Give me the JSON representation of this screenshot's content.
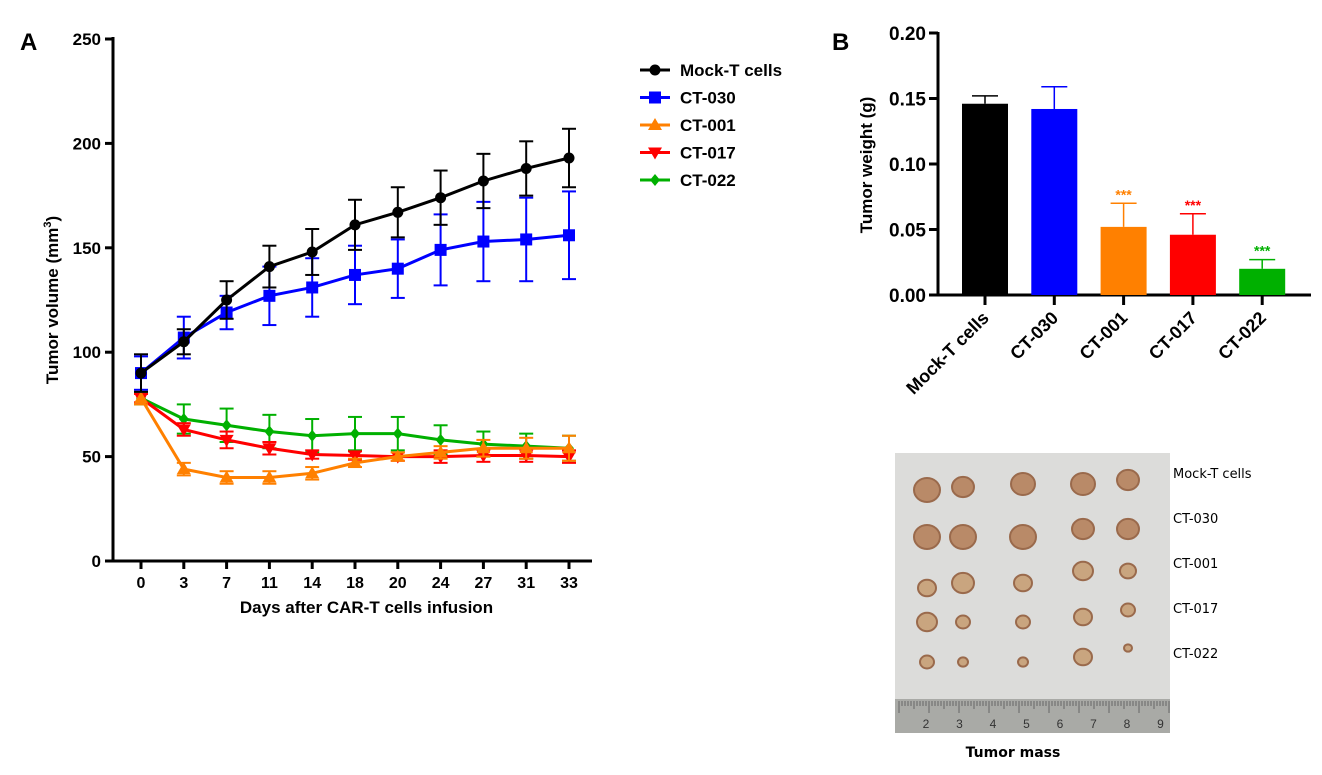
{
  "chart_data": [
    {
      "panel": "A",
      "type": "line",
      "xlabel": "Days after CAR-T cells infusion",
      "ylabel": "Tumor volume (mm",
      "ylabel_sup": "3",
      "ylabel_close": ")",
      "categories": [
        "0",
        "3",
        "7",
        "11",
        "14",
        "18",
        "20",
        "24",
        "27",
        "31",
        "33"
      ],
      "ylim": [
        0,
        250
      ],
      "yticks": [
        "0",
        "50",
        "100",
        "150",
        "200",
        "250"
      ],
      "legend_position": "right",
      "series": [
        {
          "name": "Mock-T cells",
          "color": "#000000",
          "marker": "circle",
          "values": [
            90,
            105,
            125,
            141,
            148,
            161,
            167,
            174,
            182,
            188,
            193
          ],
          "errors": [
            9,
            6,
            9,
            10,
            11,
            12,
            12,
            13,
            13,
            13,
            14
          ]
        },
        {
          "name": "CT-030",
          "color": "#0000ff",
          "marker": "square",
          "values": [
            90,
            107,
            119,
            127,
            131,
            137,
            140,
            149,
            153,
            154,
            156
          ],
          "errors": [
            8,
            10,
            8,
            14,
            14,
            14,
            14,
            17,
            19,
            20,
            21
          ]
        },
        {
          "name": "CT-001",
          "color": "#ff8000",
          "marker": "triangle-up",
          "values": [
            78,
            44,
            40,
            40,
            42,
            47,
            50,
            52,
            54,
            54,
            54
          ],
          "errors": [
            3,
            3,
            3,
            3,
            3,
            2,
            2,
            3,
            4,
            5,
            6
          ]
        },
        {
          "name": "CT-017",
          "color": "#ff0000",
          "marker": "triangle-down",
          "values": [
            78,
            63,
            58,
            54,
            51,
            50.5,
            50,
            50,
            50.5,
            50.5,
            50
          ],
          "errors": [
            2,
            3,
            4,
            3,
            2,
            2,
            2,
            3,
            3,
            3,
            3
          ]
        },
        {
          "name": "CT-022",
          "color": "#00b000",
          "marker": "diamond",
          "values": [
            78,
            68,
            65,
            62,
            60,
            61,
            61,
            58,
            56,
            55,
            54
          ],
          "errors": [
            3,
            7,
            8,
            8,
            8,
            8,
            8,
            7,
            6,
            6,
            6
          ]
        }
      ]
    },
    {
      "panel": "B",
      "type": "bar",
      "ylabel": "Tumor weight (g)",
      "categories": [
        "Mock-T cells",
        "CT-030",
        "CT-001",
        "CT-017",
        "CT-022"
      ],
      "values": [
        0.146,
        0.142,
        0.052,
        0.046,
        0.02
      ],
      "errors": [
        0.006,
        0.017,
        0.018,
        0.016,
        0.007
      ],
      "colors": [
        "#000000",
        "#0000ff",
        "#ff8000",
        "#ff0000",
        "#00b000"
      ],
      "annotations": [
        "",
        "",
        "***",
        "***",
        "***"
      ],
      "ylim": [
        0,
        0.2
      ],
      "yticks": [
        "0.00",
        "0.05",
        "0.10",
        "0.15",
        "0.20"
      ]
    }
  ],
  "panel_labels": {
    "a": "A",
    "b": "B"
  },
  "photo": {
    "row_labels": [
      "Mock-T cells",
      "CT-030",
      "CT-001",
      "CT-017",
      "CT-022"
    ],
    "ruler_numbers": [
      "2",
      "3",
      "4",
      "5",
      "6",
      "7",
      "8",
      "9"
    ],
    "caption": "Tumor mass"
  }
}
